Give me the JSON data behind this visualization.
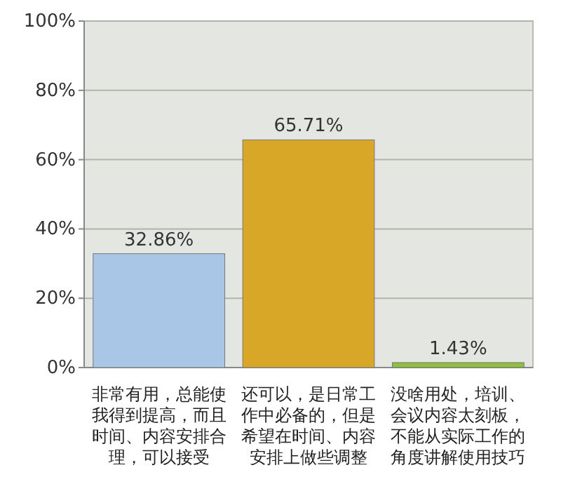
{
  "chart_data": {
    "type": "bar",
    "categories": [
      "非常有用，总能使我得到提高，而且时间、内容安排合理，可以接受",
      "还可以，是日常工作中必备的，但是希望在时间、内容安排上做些调整",
      "没啥用处，培训、会议内容太刻板，不能从实际工作的角度讲解使用技巧"
    ],
    "values": [
      32.86,
      65.71,
      1.43
    ],
    "colors": [
      "#a9c6e6",
      "#d8a728",
      "#8fbf3c"
    ],
    "value_labels": [
      "32.86%",
      "65.71%",
      "1.43%"
    ],
    "ylim": [
      0,
      100
    ],
    "yticks": [
      {
        "value": 0,
        "label": "0%"
      },
      {
        "value": 20,
        "label": "20%"
      },
      {
        "value": 40,
        "label": "40%"
      },
      {
        "value": 60,
        "label": "60%"
      },
      {
        "value": 80,
        "label": "80%"
      },
      {
        "value": 100,
        "label": "100%"
      }
    ],
    "grid": "y"
  }
}
